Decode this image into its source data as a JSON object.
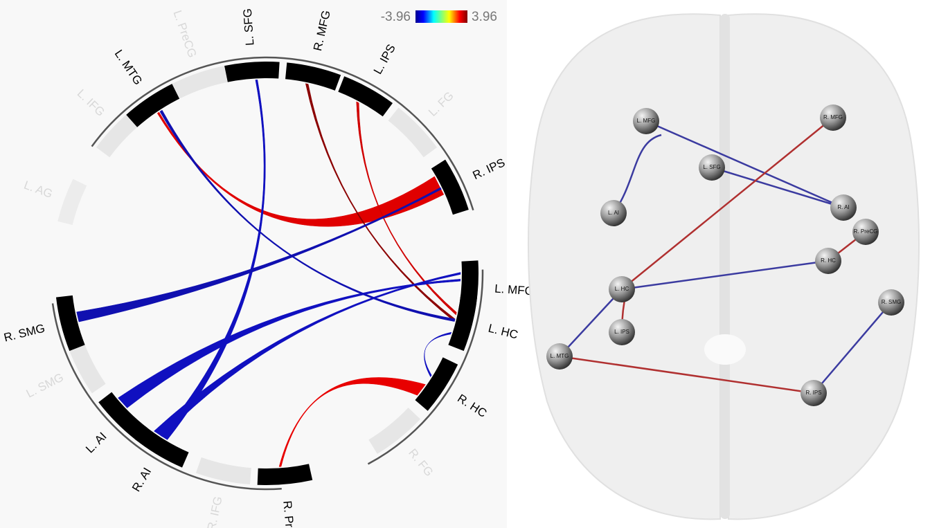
{
  "colorbar": {
    "min": -3.96,
    "max": 3.96
  },
  "circle": {
    "labels": [
      "L. SFG",
      "R. MFG",
      "L. IPS",
      "L. FG",
      "R. IPS",
      "L. MFG",
      "L. HC",
      "R. HC",
      "R. FG",
      "R. PreCG",
      "R. IFG",
      "R. AI",
      "L. AI",
      "L. SMG",
      "R. SMG",
      "L. AG",
      "L. IFG",
      "L. MTG",
      "L. PreCG"
    ]
  },
  "brain": {
    "nodes": [
      "L. MFG",
      "R. MFG",
      "L. SFG",
      "L. AI",
      "R. AI",
      "R. PreCG",
      "R. HC",
      "L. HC",
      "R. SMG",
      "L. IPS",
      "L. MTG",
      "R. IPS"
    ]
  }
}
